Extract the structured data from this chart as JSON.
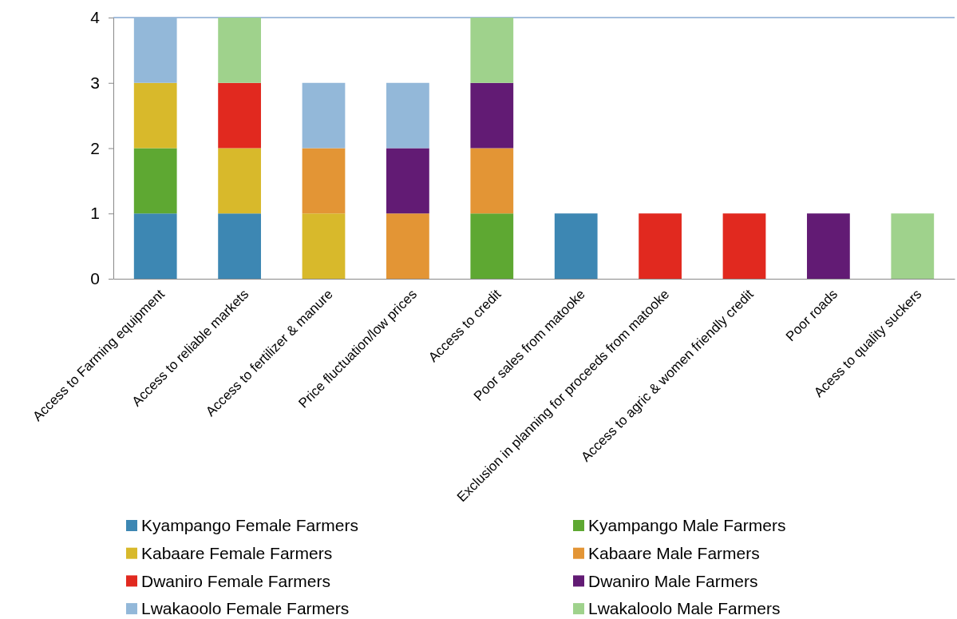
{
  "chart_data": {
    "type": "bar",
    "stacked": true,
    "categories": [
      "Access to Farming equipment",
      "Access to reliable markets",
      "Access to fertilizer & manure",
      "Price fluctuation/low prices",
      "Access to credit",
      "Poor sales from matooke",
      "Exclusion in planning for proceeds from matooke",
      "Access to agric & women friendly credit",
      "Poor roads",
      "Acess to quality suckers"
    ],
    "series": [
      {
        "name": "Kyampango Female Farmers",
        "color": "#3d87b3",
        "values": [
          1,
          1,
          null,
          null,
          null,
          1,
          null,
          null,
          null,
          null
        ]
      },
      {
        "name": "Kyampango Male Farmers",
        "color": "#5ea832",
        "values": [
          1,
          null,
          null,
          null,
          1,
          null,
          null,
          null,
          null,
          null
        ]
      },
      {
        "name": "Kabaare Female Farmers",
        "color": "#d8b92b",
        "values": [
          1,
          1,
          1,
          null,
          null,
          null,
          null,
          null,
          null,
          null
        ]
      },
      {
        "name": "Kabaare Male Farmers",
        "color": "#e39535",
        "values": [
          null,
          null,
          1,
          1,
          1,
          null,
          null,
          null,
          null,
          null
        ]
      },
      {
        "name": "Dwaniro Female Farmers",
        "color": "#e1291f",
        "values": [
          null,
          1,
          null,
          null,
          null,
          null,
          1,
          1,
          null,
          null
        ]
      },
      {
        "name": "Dwaniro Male Farmers",
        "color": "#621b74",
        "values": [
          null,
          null,
          null,
          1,
          1,
          null,
          null,
          null,
          1,
          null
        ]
      },
      {
        "name": "Lwakaoolo Female Farmers",
        "color": "#93b8d9",
        "values": [
          1,
          null,
          1,
          1,
          null,
          null,
          null,
          null,
          null,
          null
        ]
      },
      {
        "name": "Lwakaloolo Male Farmers",
        "color": "#9fd28c",
        "values": [
          null,
          1,
          null,
          null,
          1,
          null,
          null,
          null,
          null,
          1
        ]
      }
    ],
    "ylim": [
      0,
      4
    ],
    "yticks": [
      0,
      1,
      2,
      3,
      4
    ],
    "grid": false,
    "legend": "bottom"
  }
}
